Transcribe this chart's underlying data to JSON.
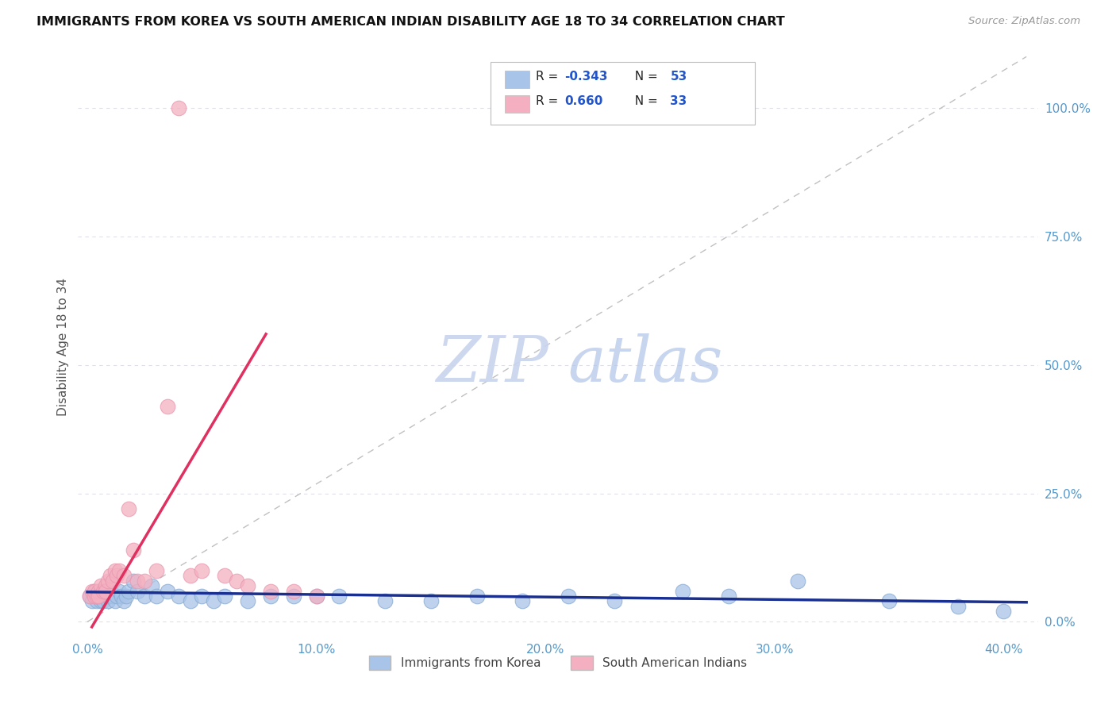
{
  "title": "IMMIGRANTS FROM KOREA VS SOUTH AMERICAN INDIAN DISABILITY AGE 18 TO 34 CORRELATION CHART",
  "source": "Source: ZipAtlas.com",
  "ylabel": "Disability Age 18 to 34",
  "xlim": [
    -0.004,
    0.415
  ],
  "ylim": [
    -0.03,
    1.1
  ],
  "xticks": [
    0.0,
    0.1,
    0.2,
    0.3,
    0.4
  ],
  "xticklabels": [
    "0.0%",
    "10.0%",
    "20.0%",
    "30.0%",
    "40.0%"
  ],
  "yticks": [
    0.0,
    0.25,
    0.5,
    0.75,
    1.0
  ],
  "yticklabels": [
    "0.0%",
    "25.0%",
    "50.0%",
    "75.0%",
    "100.0%"
  ],
  "korea_color": "#a8c4e8",
  "sai_color": "#f4b0c0",
  "korea_edge_color": "#88aad0",
  "sai_edge_color": "#e898b0",
  "korea_trend_color": "#1a3090",
  "sai_trend_color": "#e03060",
  "diagonal_color": "#c0c0c0",
  "watermark_zip_color": "#c8d4ee",
  "watermark_atlas_color": "#b0c4e8",
  "tick_color": "#5599cc",
  "grid_color": "#e0e0e8",
  "legend1_R": "-0.343",
  "legend1_N": "53",
  "legend2_R": "0.660",
  "legend2_N": "33",
  "legend_label1": "Immigrants from Korea",
  "legend_label2": "South American Indians",
  "korea_x": [
    0.001,
    0.002,
    0.003,
    0.003,
    0.004,
    0.004,
    0.005,
    0.005,
    0.006,
    0.006,
    0.007,
    0.007,
    0.008,
    0.008,
    0.009,
    0.009,
    0.01,
    0.011,
    0.012,
    0.013,
    0.014,
    0.015,
    0.016,
    0.017,
    0.018,
    0.02,
    0.022,
    0.025,
    0.028,
    0.03,
    0.035,
    0.04,
    0.045,
    0.05,
    0.055,
    0.06,
    0.07,
    0.08,
    0.09,
    0.1,
    0.11,
    0.13,
    0.15,
    0.17,
    0.19,
    0.21,
    0.23,
    0.26,
    0.28,
    0.31,
    0.35,
    0.38,
    0.4
  ],
  "korea_y": [
    0.05,
    0.04,
    0.06,
    0.05,
    0.05,
    0.04,
    0.06,
    0.05,
    0.04,
    0.06,
    0.05,
    0.04,
    0.06,
    0.05,
    0.04,
    0.05,
    0.06,
    0.05,
    0.04,
    0.05,
    0.06,
    0.05,
    0.04,
    0.05,
    0.06,
    0.08,
    0.06,
    0.05,
    0.07,
    0.05,
    0.06,
    0.05,
    0.04,
    0.05,
    0.04,
    0.05,
    0.04,
    0.05,
    0.05,
    0.05,
    0.05,
    0.04,
    0.04,
    0.05,
    0.04,
    0.05,
    0.04,
    0.06,
    0.05,
    0.08,
    0.04,
    0.03,
    0.02
  ],
  "sai_x": [
    0.001,
    0.002,
    0.003,
    0.003,
    0.004,
    0.005,
    0.005,
    0.006,
    0.007,
    0.008,
    0.008,
    0.009,
    0.01,
    0.011,
    0.012,
    0.013,
    0.014,
    0.016,
    0.018,
    0.02,
    0.022,
    0.025,
    0.03,
    0.035,
    0.04,
    0.045,
    0.05,
    0.06,
    0.065,
    0.07,
    0.08,
    0.09,
    0.1
  ],
  "sai_y": [
    0.05,
    0.06,
    0.05,
    0.06,
    0.05,
    0.06,
    0.05,
    0.07,
    0.06,
    0.07,
    0.06,
    0.08,
    0.09,
    0.08,
    0.1,
    0.09,
    0.1,
    0.09,
    0.22,
    0.14,
    0.08,
    0.08,
    0.1,
    0.42,
    1.0,
    0.09,
    0.1,
    0.09,
    0.08,
    0.07,
    0.06,
    0.06,
    0.05
  ],
  "korea_trend_x": [
    0.0,
    0.41
  ],
  "korea_trend_y": [
    0.058,
    0.038
  ],
  "sai_trend_x": [
    0.002,
    0.078
  ],
  "sai_trend_y": [
    -0.01,
    0.56
  ]
}
